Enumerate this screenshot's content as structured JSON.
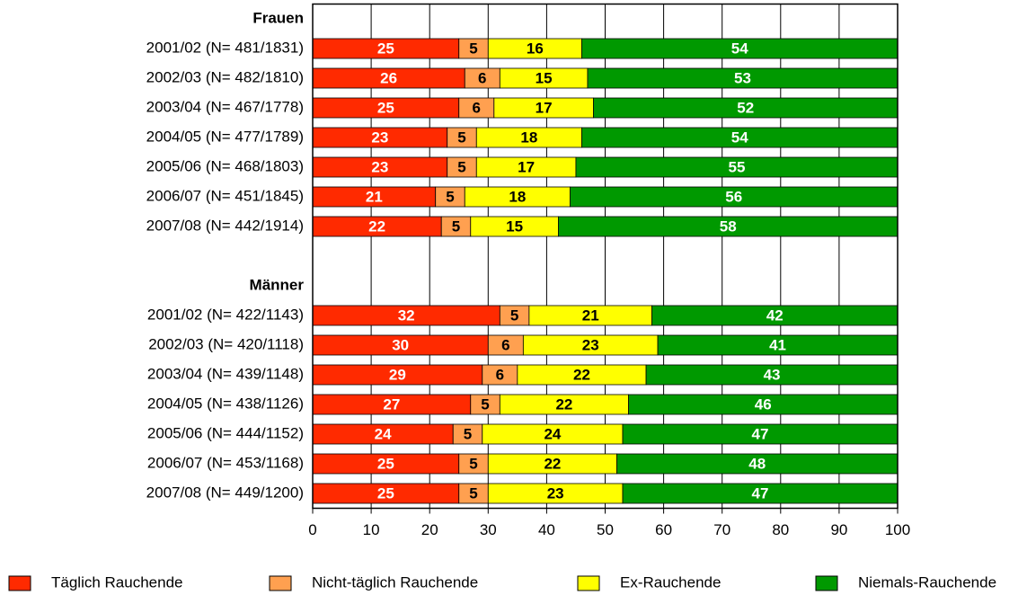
{
  "chart_data": {
    "type": "stacked-bar-horizontal",
    "groups": [
      {
        "name": "Frauen",
        "categories": [
          "2001/02 (N= 481/1831)",
          "2002/03 (N= 482/1810)",
          "2003/04 (N= 467/1778)",
          "2004/05 (N= 477/1789)",
          "2005/06 (N= 468/1803)",
          "2006/07 (N= 451/1845)",
          "2007/08 (N= 442/1914)"
        ]
      },
      {
        "name": "Männer",
        "categories": [
          "2001/02 (N= 422/1143)",
          "2002/03 (N= 420/1118)",
          "2003/04 (N= 439/1148)",
          "2004/05 (N= 438/1126)",
          "2005/06 (N= 444/1152)",
          "2006/07 (N= 453/1168)",
          "2007/08 (N= 449/1200)"
        ]
      }
    ],
    "series": [
      {
        "name": "Täglich Rauchende",
        "color": "#ff2a00",
        "label_color": "#ffffff",
        "values": [
          [
            25,
            26,
            25,
            23,
            23,
            21,
            22
          ],
          [
            32,
            30,
            29,
            27,
            24,
            25,
            25
          ]
        ]
      },
      {
        "name": "Nicht-täglich Rauchende",
        "color": "#ffa050",
        "label_color": "#000000",
        "values": [
          [
            5,
            6,
            6,
            5,
            5,
            5,
            5
          ],
          [
            5,
            6,
            6,
            5,
            5,
            5,
            5
          ]
        ]
      },
      {
        "name": "Ex-Rauchende",
        "color": "#ffff00",
        "label_color": "#000000",
        "values": [
          [
            16,
            15,
            17,
            18,
            17,
            18,
            15
          ],
          [
            21,
            23,
            22,
            22,
            24,
            22,
            23
          ]
        ]
      },
      {
        "name": "Niemals-Rauchende",
        "color": "#009900",
        "label_color": "#ffffff",
        "values": [
          [
            54,
            53,
            52,
            54,
            55,
            56,
            58
          ],
          [
            42,
            41,
            43,
            46,
            47,
            48,
            47
          ]
        ]
      }
    ],
    "xlim": [
      0,
      100
    ],
    "xticks": [
      0,
      10,
      20,
      30,
      40,
      50,
      60,
      70,
      80,
      90,
      100
    ],
    "grid": true,
    "legend": "bottom"
  }
}
